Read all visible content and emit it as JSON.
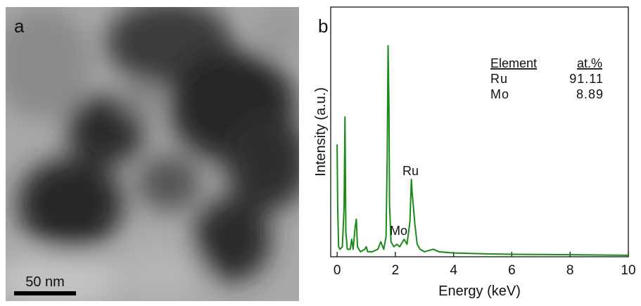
{
  "panel_a": {
    "label": "a",
    "scale_bar": "50 nm"
  },
  "chart_data": {
    "type": "line",
    "panel_label": "b",
    "xlabel": "Energy (keV)",
    "ylabel": "Intensity (a.u.)",
    "xlim": [
      -0.22,
      10
    ],
    "ylim": [
      0,
      100
    ],
    "xticks": [
      0,
      2,
      4,
      6,
      8,
      10
    ],
    "annotations": [
      "Ru",
      "Mo"
    ],
    "table": {
      "header": [
        "Element",
        "at.%"
      ],
      "rows": [
        [
          "Ru",
          91.11
        ],
        [
          "Mo",
          8.89
        ]
      ]
    },
    "series": [
      {
        "color": "#1a8a1a",
        "x": [
          0,
          0.02,
          0.05,
          0.1,
          0.18,
          0.24,
          0.27,
          0.3,
          0.35,
          0.45,
          0.5,
          0.55,
          0.62,
          0.66,
          0.7,
          0.8,
          0.95,
          1.0,
          1.05,
          1.2,
          1.4,
          1.5,
          1.6,
          1.68,
          1.72,
          1.75,
          1.78,
          1.8,
          1.85,
          1.95,
          2.05,
          2.15,
          2.3,
          2.4,
          2.5,
          2.55,
          2.58,
          2.62,
          2.67,
          2.75,
          2.85,
          3.0,
          3.3,
          3.5,
          4.0,
          5,
          6,
          7,
          8,
          9,
          10
        ],
        "values": [
          45,
          20,
          4,
          3,
          4,
          20,
          56,
          10,
          3,
          3,
          7,
          3,
          12,
          15,
          4,
          2,
          3,
          4,
          2,
          2,
          3,
          6,
          3,
          8,
          40,
          84.5,
          60,
          21,
          6,
          4,
          5,
          4,
          7,
          5,
          14,
          31,
          25,
          20,
          13,
          5,
          3,
          2,
          3,
          2,
          1.5,
          1.2,
          1,
          0.9,
          0.8,
          0.7,
          0.6
        ]
      }
    ]
  }
}
